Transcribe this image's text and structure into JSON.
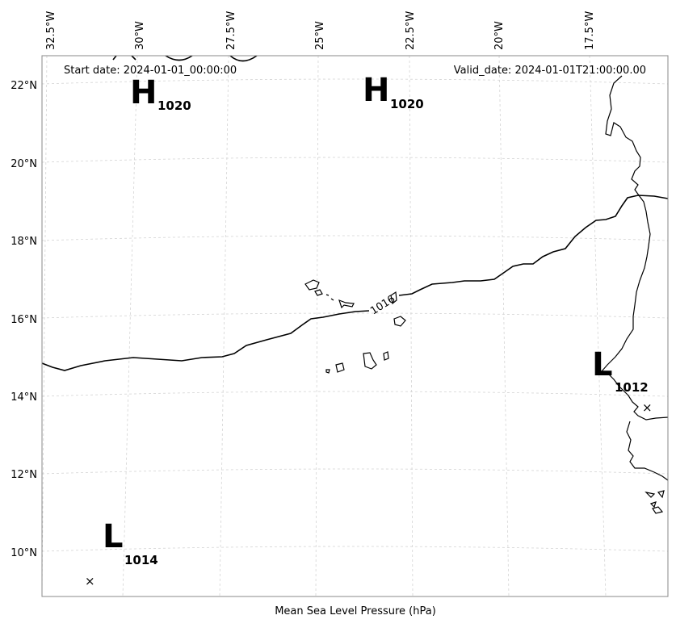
{
  "map": {
    "header": {
      "start_date": "Start date: 2024-01-01_00:00:00",
      "valid_date": "Valid_date: 2024-01-01T21:00:00.00"
    },
    "footer_label": "Mean Sea Level Pressure (hPa)",
    "lon_labels": [
      "32.5°W",
      "30°W",
      "27.5°W",
      "25°W",
      "22.5°W",
      "20°W",
      "17.5°W"
    ],
    "lat_labels": [
      "22°N",
      "20°N",
      "18°N",
      "16°N",
      "14°N",
      "12°N",
      "10°N"
    ],
    "contour_label": "1016",
    "pressure_centers": [
      {
        "type": "H",
        "value": "1020"
      },
      {
        "type": "H",
        "value": "1020"
      },
      {
        "type": "L",
        "value": "1012"
      },
      {
        "type": "L",
        "value": "1014"
      }
    ],
    "center_marker": "×",
    "colors": {
      "coast": "#000000",
      "isobar": "#000000",
      "grid": "#cccccc"
    }
  }
}
